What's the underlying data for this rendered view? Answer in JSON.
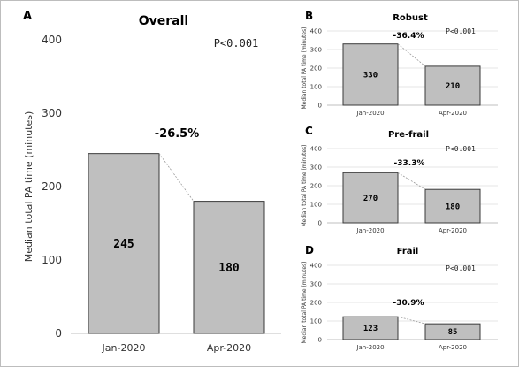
{
  "figure": {
    "frame_color": "#bdbdbd",
    "bar_fill": "#bfbfbf",
    "bar_stroke": "#3a3a3a"
  },
  "chart_data": [
    {
      "panel": "A",
      "type": "bar",
      "title": "Overall",
      "categories": [
        "Jan-2020",
        "Apr-2020"
      ],
      "values": [
        245,
        180
      ],
      "data_labels": [
        "245",
        "180"
      ],
      "ylabel": "Median total PA time (minutes)",
      "ylim": [
        0,
        400
      ],
      "yticks": [
        0,
        100,
        200,
        300,
        400
      ],
      "change_label": "-26.5%",
      "p_value": "P<0.001",
      "grid": false
    },
    {
      "panel": "B",
      "type": "bar",
      "title": "Robust",
      "categories": [
        "Jan-2020",
        "Apr-2020"
      ],
      "values": [
        330,
        210
      ],
      "data_labels": [
        "330",
        "210"
      ],
      "ylabel": "Median total PA time (minutes)",
      "ylim": [
        0,
        400
      ],
      "yticks": [
        0,
        100,
        200,
        300,
        400
      ],
      "change_label": "-36.4%",
      "p_value": "P<0.001",
      "grid": true
    },
    {
      "panel": "C",
      "type": "bar",
      "title": "Pre-frail",
      "categories": [
        "Jan-2020",
        "Apr-2020"
      ],
      "values": [
        270,
        180
      ],
      "data_labels": [
        "270",
        "180"
      ],
      "ylabel": "Median total PA time (minutes)",
      "ylim": [
        0,
        400
      ],
      "yticks": [
        0,
        100,
        200,
        300,
        400
      ],
      "change_label": "-33.3%",
      "p_value": "P<0.001",
      "grid": true
    },
    {
      "panel": "D",
      "type": "bar",
      "title": "Frail",
      "categories": [
        "Jan-2020",
        "Apr-2020"
      ],
      "values": [
        123,
        85
      ],
      "data_labels": [
        "123",
        "85"
      ],
      "ylabel": "Median total PA time (minutes)",
      "ylim": [
        0,
        400
      ],
      "yticks": [
        0,
        100,
        200,
        300,
        400
      ],
      "change_label": "-30.9%",
      "p_value": "P<0.001",
      "grid": true
    }
  ]
}
